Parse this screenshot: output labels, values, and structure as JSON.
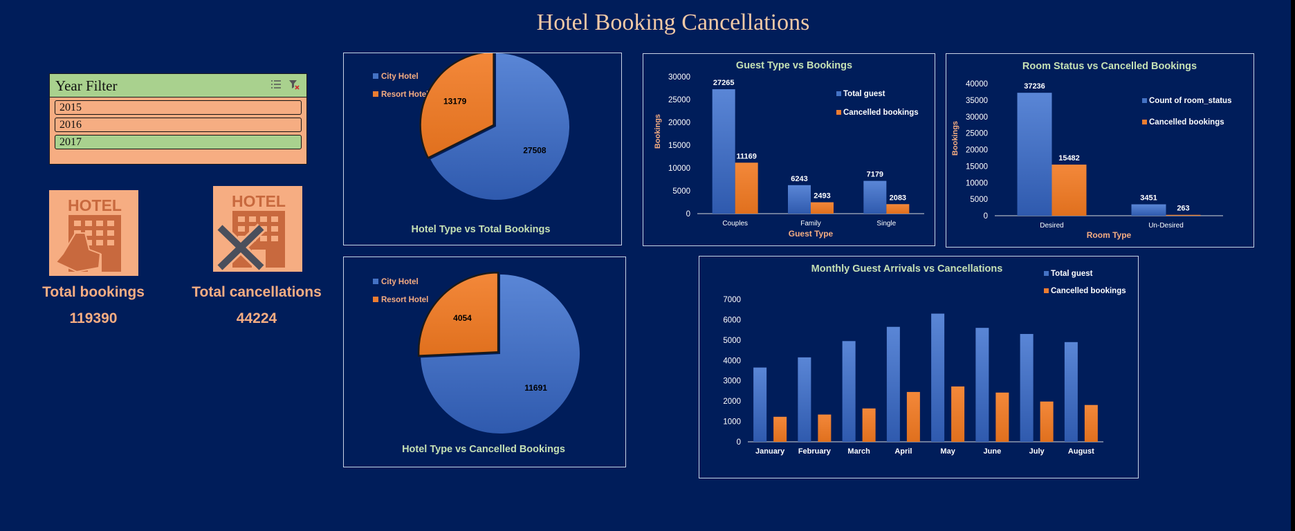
{
  "title": "Hotel Booking Cancellations",
  "slicer": {
    "title": "Year Filter",
    "items": [
      "2015",
      "2016",
      "2017"
    ],
    "selected": "2017"
  },
  "kpis": [
    {
      "label": "Total bookings",
      "value": "119390",
      "icon": "hotel-booking-icon"
    },
    {
      "label": "Total cancellations",
      "value": "44224",
      "icon": "hotel-cancel-icon"
    }
  ],
  "colors": {
    "blue": "#4472c4",
    "orange": "#ed7d31",
    "title_green": "#c5e0b4",
    "label_peach": "#f6ad82"
  },
  "chart_data": [
    {
      "type": "pie",
      "title": "Hotel Type vs Total Bookings",
      "labels": [
        "City Hotel",
        "Resort Hotel"
      ],
      "values": [
        27508,
        13179
      ],
      "legend": "top-left"
    },
    {
      "type": "pie",
      "title": "Hotel Type vs Cancelled Bookings",
      "labels": [
        "City Hotel",
        "Resort Hotel"
      ],
      "values": [
        11691,
        4054
      ],
      "legend": "top-left"
    },
    {
      "type": "bar",
      "title": "Guest Type vs Bookings",
      "categories": [
        "Couples",
        "Family",
        "Single"
      ],
      "series": [
        {
          "name": "Total guest",
          "values": [
            27265,
            6243,
            7179
          ]
        },
        {
          "name": "Cancelled bookings",
          "values": [
            11169,
            2493,
            2083
          ]
        }
      ],
      "xlabel": "Guest Type",
      "ylabel": "Bookings",
      "ylim": [
        0,
        30000
      ],
      "yticks": [
        0,
        5000,
        10000,
        15000,
        20000,
        25000,
        30000
      ],
      "legend": "right"
    },
    {
      "type": "bar",
      "title": "Room Status vs Cancelled Bookings",
      "categories": [
        "Desired",
        "Un-Desired"
      ],
      "series": [
        {
          "name": "Count of room_status",
          "values": [
            37236,
            3451
          ]
        },
        {
          "name": "Cancelled bookings",
          "values": [
            15482,
            263
          ]
        }
      ],
      "xlabel": "Room Type",
      "ylabel": "Bookings",
      "ylim": [
        0,
        40000
      ],
      "yticks": [
        0,
        5000,
        10000,
        15000,
        20000,
        25000,
        30000,
        35000,
        40000
      ],
      "legend": "right"
    },
    {
      "type": "bar",
      "title": "Monthly Guest Arrivals vs Cancellations",
      "categories": [
        "January",
        "February",
        "March",
        "April",
        "May",
        "June",
        "July",
        "August"
      ],
      "series": [
        {
          "name": "Total guest",
          "values": [
            3650,
            4150,
            4950,
            5650,
            6300,
            5600,
            5300,
            4900
          ]
        },
        {
          "name": "Cancelled bookings",
          "values": [
            1230,
            1340,
            1640,
            2450,
            2720,
            2420,
            1980,
            1810
          ]
        }
      ],
      "ylim": [
        0,
        7000
      ],
      "yticks": [
        0,
        1000,
        2000,
        3000,
        4000,
        5000,
        6000,
        7000
      ],
      "legend": "top-right"
    }
  ]
}
